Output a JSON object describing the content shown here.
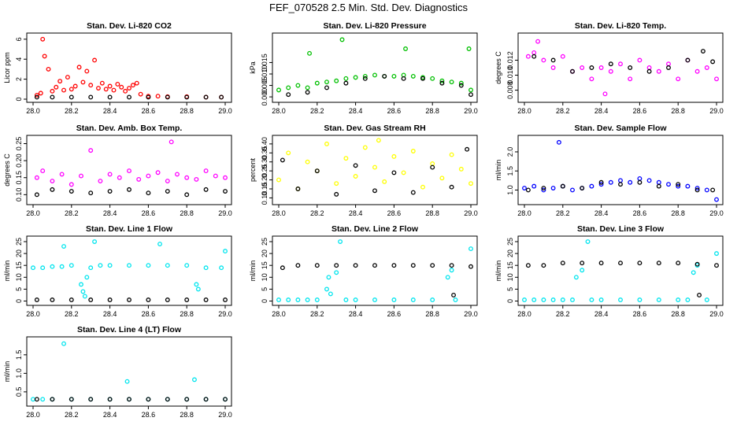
{
  "page_title": "FEF_070528  2.5 Min. Std. Dev. Diagnostics",
  "chart_data": [
    {
      "type": "scatter",
      "title": "Stan. Dev. Li-820 CO2",
      "ylabel": "Licor ppm",
      "xlim": [
        28.0,
        29.0
      ],
      "ylim": [
        0,
        6.3
      ],
      "xticks": [
        "28.0",
        "28.2",
        "28.4",
        "28.6",
        "28.8",
        "29.0"
      ],
      "yticks": [
        "0",
        "2",
        "4",
        "6"
      ],
      "ytick_values": [
        0,
        2,
        4,
        6
      ],
      "series": [
        {
          "color": "#ff0000",
          "x": [
            28.02,
            28.04,
            28.05,
            28.06,
            28.08,
            28.1,
            28.12,
            28.14,
            28.16,
            28.18,
            28.2,
            28.22,
            28.24,
            28.26,
            28.28,
            28.3,
            28.32,
            28.34,
            28.36,
            28.38,
            28.4,
            28.42,
            28.44,
            28.46,
            28.48,
            28.5,
            28.52,
            28.54,
            28.56,
            28.6,
            28.65,
            28.7,
            28.8,
            28.9,
            28.98
          ],
          "y": [
            0.4,
            0.6,
            6.0,
            4.3,
            3.0,
            0.8,
            1.2,
            1.8,
            0.9,
            2.2,
            1.0,
            1.3,
            3.2,
            1.7,
            2.8,
            1.4,
            3.9,
            1.1,
            1.6,
            1.0,
            1.3,
            0.9,
            1.5,
            1.2,
            0.8,
            1.1,
            1.4,
            1.6,
            0.5,
            0.3,
            0.3,
            0.25,
            0.25,
            0.2,
            0.2
          ]
        },
        {
          "color": "#000000",
          "x": [
            28.02,
            28.1,
            28.2,
            28.3,
            28.4,
            28.5,
            28.6,
            28.7,
            28.8,
            28.9,
            28.98
          ],
          "y": [
            0.2,
            0.2,
            0.2,
            0.2,
            0.2,
            0.2,
            0.2,
            0.2,
            0.2,
            0.2,
            0.2
          ]
        }
      ]
    },
    {
      "type": "scatter",
      "title": "Stan. Dev. Li-820 Pressure",
      "ylabel": "kPa",
      "xlim": [
        28.0,
        29.0
      ],
      "ylim": [
        -0.001,
        0.0265
      ],
      "xticks": [
        "28.0",
        "28.2",
        "28.4",
        "28.6",
        "28.8",
        "29.0"
      ],
      "yticks": [
        "0.000",
        "0.005",
        "0.010",
        "0.015"
      ],
      "ytick_values": [
        0.0,
        0.005,
        0.01,
        0.015
      ],
      "series": [
        {
          "color": "#00c000",
          "x": [
            28.0,
            28.05,
            28.1,
            28.15,
            28.16,
            28.2,
            28.25,
            28.3,
            28.33,
            28.35,
            28.4,
            28.45,
            28.5,
            28.55,
            28.6,
            28.65,
            28.66,
            28.7,
            28.75,
            28.8,
            28.85,
            28.9,
            28.95,
            29.0,
            28.99
          ],
          "y": [
            0.003,
            0.004,
            0.005,
            0.004,
            0.019,
            0.006,
            0.0065,
            0.007,
            0.025,
            0.008,
            0.0085,
            0.009,
            0.0095,
            0.009,
            0.009,
            0.0095,
            0.021,
            0.009,
            0.0085,
            0.008,
            0.007,
            0.0065,
            0.006,
            0.003,
            0.021
          ]
        },
        {
          "color": "#000000",
          "x": [
            28.05,
            28.15,
            28.25,
            28.35,
            28.45,
            28.55,
            28.65,
            28.75,
            28.85,
            28.95,
            29.0
          ],
          "y": [
            0.001,
            0.002,
            0.004,
            0.006,
            0.008,
            0.009,
            0.008,
            0.008,
            0.006,
            0.005,
            0.001
          ]
        }
      ]
    },
    {
      "type": "scatter",
      "title": "Stan. Dev. Li-820 Temp.",
      "ylabel": "degrees C",
      "xlim": [
        28.0,
        29.0
      ],
      "ylim": [
        0.0068,
        0.0152
      ],
      "xticks": [
        "28.0",
        "28.2",
        "28.4",
        "28.6",
        "28.8",
        "29.0"
      ],
      "yticks": [
        "0.008",
        "0.010",
        "0.012"
      ],
      "ytick_values": [
        0.008,
        0.01,
        0.012
      ],
      "series": [
        {
          "color": "#ff00ff",
          "x": [
            28.02,
            28.05,
            28.07,
            28.1,
            28.15,
            28.2,
            28.25,
            28.3,
            28.35,
            28.4,
            28.42,
            28.45,
            28.5,
            28.55,
            28.6,
            28.65,
            28.7,
            28.75,
            28.8,
            28.85,
            28.9,
            28.95,
            29.0
          ],
          "y": [
            0.0125,
            0.013,
            0.0145,
            0.012,
            0.011,
            0.0125,
            0.0105,
            0.011,
            0.0095,
            0.011,
            0.0075,
            0.0105,
            0.0115,
            0.0095,
            0.012,
            0.011,
            0.0105,
            0.0115,
            0.0095,
            0.012,
            0.0105,
            0.011,
            0.0095
          ]
        },
        {
          "color": "#000000",
          "x": [
            28.05,
            28.15,
            28.25,
            28.35,
            28.45,
            28.55,
            28.65,
            28.75,
            28.85,
            28.93,
            28.98
          ],
          "y": [
            0.0125,
            0.012,
            0.0105,
            0.011,
            0.0115,
            0.011,
            0.0105,
            0.011,
            0.012,
            0.0132,
            0.0118
          ]
        }
      ]
    },
    {
      "type": "scatter",
      "title": "Stan. Dev. Amb. Box Temp.",
      "ylabel": "degrees C",
      "xlim": [
        28.0,
        29.0
      ],
      "ylim": [
        0.08,
        0.265
      ],
      "xticks": [
        "28.0",
        "28.2",
        "28.4",
        "28.6",
        "28.8",
        "29.0"
      ],
      "yticks": [
        "0.10",
        "0.15",
        "0.20",
        "0.25"
      ],
      "ytick_values": [
        0.1,
        0.15,
        0.2,
        0.25
      ],
      "series": [
        {
          "color": "#ff00ff",
          "x": [
            28.02,
            28.05,
            28.1,
            28.15,
            28.2,
            28.25,
            28.3,
            28.35,
            28.4,
            28.45,
            28.5,
            28.55,
            28.6,
            28.65,
            28.7,
            28.72,
            28.75,
            28.8,
            28.85,
            28.9,
            28.95,
            29.0
          ],
          "y": [
            0.15,
            0.17,
            0.14,
            0.16,
            0.13,
            0.155,
            0.23,
            0.14,
            0.16,
            0.15,
            0.17,
            0.145,
            0.155,
            0.165,
            0.14,
            0.255,
            0.16,
            0.15,
            0.145,
            0.17,
            0.155,
            0.15
          ]
        },
        {
          "color": "#000000",
          "x": [
            28.02,
            28.1,
            28.2,
            28.3,
            28.4,
            28.5,
            28.6,
            28.7,
            28.8,
            28.9,
            29.0
          ],
          "y": [
            0.1,
            0.115,
            0.11,
            0.105,
            0.11,
            0.115,
            0.105,
            0.11,
            0.1,
            0.115,
            0.11
          ]
        }
      ]
    },
    {
      "type": "scatter",
      "title": "Stan. Dev. Gas Stream RH",
      "ylabel": "percent",
      "xlim": [
        28.0,
        29.0
      ],
      "ylim": [
        0.08,
        0.43
      ],
      "xticks": [
        "28.0",
        "28.2",
        "28.4",
        "28.6",
        "28.8",
        "29.0"
      ],
      "yticks": [
        "0.10",
        "0.15",
        "0.20",
        "0.25",
        "0.30",
        "0.35",
        "0.40"
      ],
      "ytick_values": [
        0.1,
        0.15,
        0.2,
        0.25,
        0.3,
        0.35,
        0.4
      ],
      "series": [
        {
          "color": "#ffff00",
          "x": [
            28.0,
            28.05,
            28.1,
            28.15,
            28.2,
            28.25,
            28.3,
            28.35,
            28.4,
            28.45,
            28.5,
            28.52,
            28.55,
            28.6,
            28.65,
            28.7,
            28.75,
            28.8,
            28.85,
            28.9,
            28.95,
            29.0
          ],
          "y": [
            0.2,
            0.35,
            0.15,
            0.3,
            0.25,
            0.4,
            0.18,
            0.32,
            0.22,
            0.38,
            0.27,
            0.42,
            0.19,
            0.33,
            0.24,
            0.36,
            0.16,
            0.29,
            0.21,
            0.34,
            0.26,
            0.18
          ]
        },
        {
          "color": "#000000",
          "x": [
            28.02,
            28.1,
            28.2,
            28.3,
            28.4,
            28.5,
            28.6,
            28.7,
            28.8,
            28.9,
            28.98
          ],
          "y": [
            0.31,
            0.15,
            0.25,
            0.12,
            0.28,
            0.14,
            0.24,
            0.13,
            0.27,
            0.16,
            0.37
          ]
        }
      ]
    },
    {
      "type": "scatter",
      "title": "Stan. Dev. Sample Flow",
      "ylabel": "ml/min",
      "xlim": [
        28.0,
        29.0
      ],
      "ylim": [
        0.7,
        2.35
      ],
      "xticks": [
        "28.0",
        "28.2",
        "28.4",
        "28.6",
        "28.8",
        "29.0"
      ],
      "yticks": [
        "1.0",
        "1.5",
        "2.0"
      ],
      "ytick_values": [
        1.0,
        1.5,
        2.0
      ],
      "series": [
        {
          "color": "#0000ff",
          "x": [
            28.0,
            28.05,
            28.1,
            28.15,
            28.18,
            28.2,
            28.25,
            28.3,
            28.35,
            28.4,
            28.45,
            28.5,
            28.55,
            28.6,
            28.65,
            28.7,
            28.75,
            28.8,
            28.85,
            28.9,
            28.95,
            29.0
          ],
          "y": [
            1.05,
            1.1,
            1.0,
            1.05,
            2.25,
            1.1,
            1.0,
            1.05,
            1.1,
            1.15,
            1.2,
            1.25,
            1.2,
            1.3,
            1.25,
            1.2,
            1.15,
            1.1,
            1.1,
            1.05,
            1.0,
            0.75
          ]
        },
        {
          "color": "#000000",
          "x": [
            28.02,
            28.1,
            28.2,
            28.3,
            28.4,
            28.5,
            28.6,
            28.7,
            28.8,
            28.9,
            28.98
          ],
          "y": [
            1.0,
            1.05,
            1.1,
            1.05,
            1.2,
            1.15,
            1.2,
            1.1,
            1.15,
            1.0,
            1.0
          ]
        }
      ]
    },
    {
      "type": "scatter",
      "title": "Stan. Dev. Line 1 Flow",
      "ylabel": "ml/min",
      "xlim": [
        28.0,
        29.0
      ],
      "ylim": [
        -0.5,
        26
      ],
      "xticks": [
        "28.0",
        "28.2",
        "28.4",
        "28.6",
        "28.8",
        "29.0"
      ],
      "yticks": [
        "0",
        "5",
        "10",
        "15",
        "20",
        "25"
      ],
      "ytick_values": [
        0,
        5,
        10,
        15,
        20,
        25
      ],
      "series": [
        {
          "color": "#00e5ee",
          "x": [
            28.0,
            28.05,
            28.1,
            28.15,
            28.16,
            28.2,
            28.25,
            28.26,
            28.27,
            28.28,
            28.3,
            28.32,
            28.35,
            28.4,
            28.5,
            28.6,
            28.66,
            28.7,
            28.8,
            28.85,
            28.86,
            28.9,
            28.98,
            29.0
          ],
          "y": [
            14,
            14,
            14.5,
            14.5,
            23,
            15,
            7,
            4,
            2,
            10,
            14,
            25,
            15,
            15,
            15,
            15,
            24,
            15,
            15,
            7,
            5,
            14,
            14,
            21
          ]
        },
        {
          "color": "#000000",
          "x": [
            28.02,
            28.1,
            28.2,
            28.3,
            28.4,
            28.5,
            28.6,
            28.7,
            28.8,
            28.9,
            29.0
          ],
          "y": [
            0.5,
            0.5,
            0.5,
            0.5,
            0.5,
            0.5,
            0.5,
            0.5,
            0.5,
            0.5,
            0.5
          ]
        }
      ]
    },
    {
      "type": "scatter",
      "title": "Stan. Dev. Line 2 Flow",
      "ylabel": "ml/min",
      "xlim": [
        28.0,
        29.0
      ],
      "ylim": [
        -0.5,
        26
      ],
      "xticks": [
        "28.0",
        "28.2",
        "28.4",
        "28.6",
        "28.8",
        "29.0"
      ],
      "yticks": [
        "0",
        "5",
        "10",
        "15",
        "20",
        "25"
      ],
      "ytick_values": [
        0,
        5,
        10,
        15,
        20,
        25
      ],
      "series": [
        {
          "color": "#00e5ee",
          "x": [
            28.0,
            28.05,
            28.1,
            28.15,
            28.2,
            28.25,
            28.26,
            28.27,
            28.3,
            28.32,
            28.35,
            28.4,
            28.5,
            28.6,
            28.7,
            28.8,
            28.88,
            28.9,
            28.92,
            29.0
          ],
          "y": [
            0.5,
            0.5,
            0.5,
            0.5,
            0.5,
            5,
            10,
            3,
            12,
            25,
            0.5,
            0.5,
            0.5,
            0.5,
            0.5,
            0.5,
            10,
            13,
            0.5,
            22
          ]
        },
        {
          "color": "#000000",
          "x": [
            28.02,
            28.1,
            28.2,
            28.3,
            28.4,
            28.5,
            28.6,
            28.7,
            28.8,
            28.9,
            28.91,
            29.0
          ],
          "y": [
            14,
            15,
            15,
            15,
            15,
            15,
            15,
            15,
            15,
            15,
            2.5,
            14.5
          ]
        }
      ]
    },
    {
      "type": "scatter",
      "title": "Stan. Dev. Line 3 Flow",
      "ylabel": "ml/min",
      "xlim": [
        28.0,
        29.0
      ],
      "ylim": [
        -0.5,
        26
      ],
      "xticks": [
        "28.0",
        "28.2",
        "28.4",
        "28.6",
        "28.8",
        "29.0"
      ],
      "yticks": [
        "0",
        "5",
        "10",
        "15",
        "20",
        "25"
      ],
      "ytick_values": [
        0,
        5,
        10,
        15,
        20,
        25
      ],
      "series": [
        {
          "color": "#00e5ee",
          "x": [
            28.0,
            28.05,
            28.1,
            28.15,
            28.2,
            28.25,
            28.27,
            28.3,
            28.33,
            28.35,
            28.4,
            28.5,
            28.6,
            28.7,
            28.8,
            28.85,
            28.88,
            28.9,
            28.95,
            29.0
          ],
          "y": [
            0.5,
            0.5,
            0.5,
            0.5,
            0.5,
            0.5,
            10,
            13,
            25,
            0.5,
            0.5,
            0.5,
            0.5,
            0.5,
            0.5,
            0.5,
            12,
            15,
            0.5,
            20
          ]
        },
        {
          "color": "#000000",
          "x": [
            28.02,
            28.1,
            28.2,
            28.3,
            28.4,
            28.5,
            28.6,
            28.7,
            28.8,
            28.9,
            28.91,
            29.0
          ],
          "y": [
            15,
            15,
            16,
            16,
            16,
            16,
            16,
            16,
            16,
            15.5,
            2.5,
            15
          ]
        }
      ]
    },
    {
      "type": "scatter",
      "title": "Stan. Dev. Line 4 (LT) Flow",
      "ylabel": "ml/min",
      "xlim": [
        28.0,
        29.0
      ],
      "ylim": [
        0.2,
        1.9
      ],
      "xticks": [
        "28.0",
        "28.2",
        "28.4",
        "28.6",
        "28.8",
        "29.0"
      ],
      "yticks": [
        "0.5",
        "1.0",
        "1.5"
      ],
      "ytick_values": [
        0.5,
        1.0,
        1.5
      ],
      "series": [
        {
          "color": "#00e5ee",
          "x": [
            28.0,
            28.05,
            28.1,
            28.16,
            28.2,
            28.3,
            28.4,
            28.49,
            28.5,
            28.6,
            28.7,
            28.8,
            28.84,
            28.9,
            29.0
          ],
          "y": [
            0.3,
            0.3,
            0.3,
            1.8,
            0.3,
            0.3,
            0.3,
            0.78,
            0.3,
            0.3,
            0.3,
            0.3,
            0.83,
            0.3,
            0.3
          ]
        },
        {
          "color": "#000000",
          "x": [
            28.02,
            28.1,
            28.2,
            28.3,
            28.4,
            28.5,
            28.6,
            28.7,
            28.8,
            28.9,
            29.0
          ],
          "y": [
            0.3,
            0.3,
            0.3,
            0.3,
            0.3,
            0.3,
            0.3,
            0.3,
            0.3,
            0.3,
            0.3
          ]
        }
      ]
    }
  ]
}
